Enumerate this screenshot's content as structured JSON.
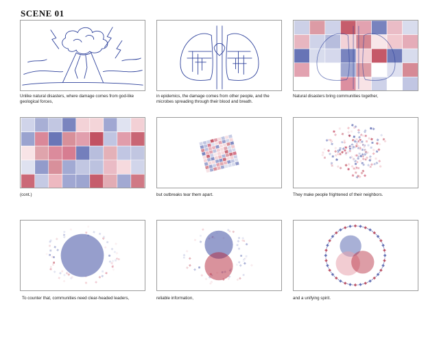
{
  "scene_title": "SCENE 01",
  "colors": {
    "blue": "#3f4fa3",
    "red": "#b3263a",
    "line": "#2b3f9a",
    "light_blue": "#aab1d8",
    "light_red": "#e8a3ad"
  },
  "panels": [
    {
      "id": "volcano",
      "caption": "Unlike natural disasters, where damage comes from god-like geological forces,"
    },
    {
      "id": "lungs",
      "caption": "in epidemics, the damage comes from other people, and the microbes spreading through their blood and breath."
    },
    {
      "id": "grid-over-lungs",
      "caption": "Natural disasters bring communities together,"
    },
    {
      "id": "full-grid",
      "caption": "(cont.)"
    },
    {
      "id": "compressed-grid",
      "caption": "but outbreaks tear them apart."
    },
    {
      "id": "scattered",
      "caption": "They make people frightened of their neighbors."
    },
    {
      "id": "blue-circle",
      "caption": "To counter that, communities need clear-headed leaders,"
    },
    {
      "id": "two-circles",
      "caption": "reliable information,"
    },
    {
      "id": "ring-three-circles",
      "caption": "and a unifying spirit."
    }
  ]
}
